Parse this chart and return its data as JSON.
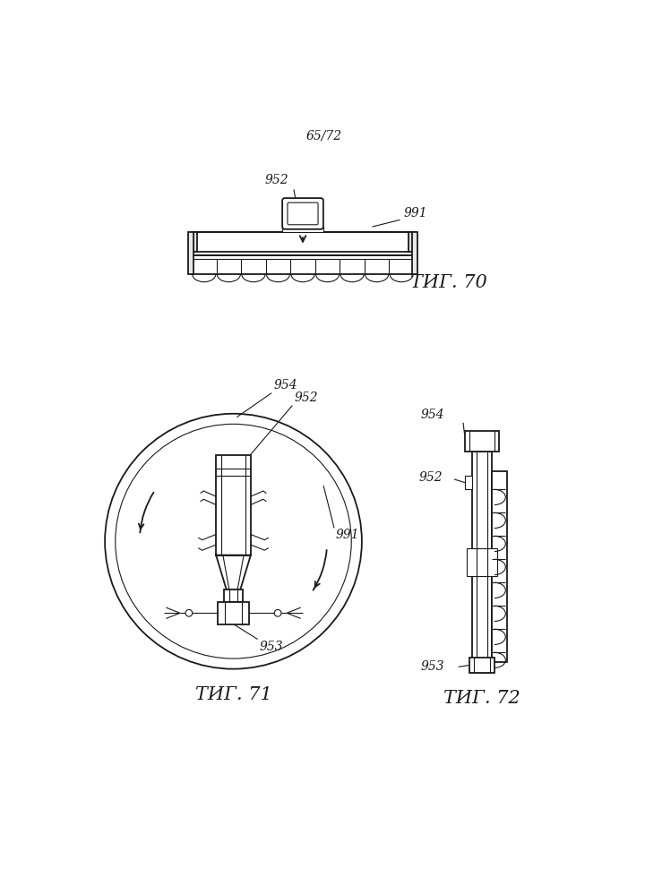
{
  "page_label": "65/72",
  "fig70_label": "ΤИГ. 70",
  "fig71_label": "ΤИГ. 71",
  "fig72_label": "ΤИГ. 72",
  "label_952": "952",
  "label_991": "991",
  "label_954": "954",
  "label_953": "953",
  "bg_color": "#ffffff",
  "line_color": "#1a1a1a",
  "line_width": 1.3,
  "thin_line": 0.8,
  "font_size_label": 10,
  "font_size_fig": 15,
  "font_size_page": 10
}
